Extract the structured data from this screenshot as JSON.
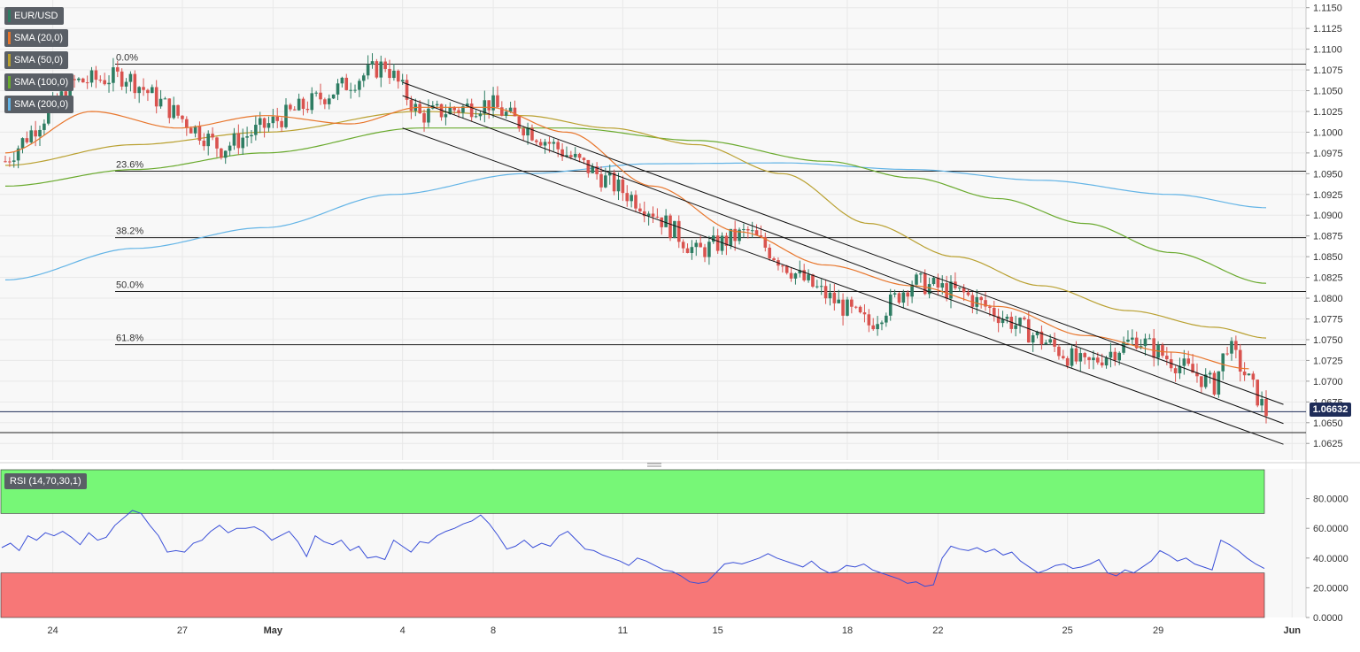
{
  "legend": {
    "symbol": "EUR/USD",
    "sma20": "SMA (20,0)",
    "sma50": "SMA (50,0)",
    "sma100": "SMA (100,0)",
    "sma200": "SMA (200,0)"
  },
  "rsi_label": "RSI (14,70,30,1)",
  "last_price": "1.06632",
  "colors": {
    "up": "#2e7d63",
    "down": "#d9534f",
    "sma20": "#e8762c",
    "sma50": "#b9a030",
    "sma100": "#6aaa2e",
    "sma200": "#63b4e6",
    "rsi": "#3a4fd8",
    "overbought": "#77f777",
    "oversold": "#f77777",
    "channel": "#111111",
    "current_price_line": "#1f2d59"
  },
  "chart_data": [
    {
      "type": "candlestick",
      "symbol": "EUR/USD",
      "ylim": [
        1.0605,
        1.1155
      ],
      "y_ticks": [
        "1.1150",
        "1.1125",
        "1.1100",
        "1.1075",
        "1.1050",
        "1.1025",
        "1.1000",
        "1.0975",
        "1.0950",
        "1.0925",
        "1.0900",
        "1.0875",
        "1.0850",
        "1.0825",
        "1.0800",
        "1.0775",
        "1.0750",
        "1.0725",
        "1.0700",
        "1.0675",
        "1.0650",
        "1.0625"
      ],
      "x_ticks": [
        "24",
        "27",
        "May",
        "4",
        "8",
        "11",
        "15",
        "18",
        "22",
        "25",
        "29",
        "Jun"
      ],
      "fibonacci": [
        {
          "label": "0.0%",
          "price": 1.1082
        },
        {
          "label": "23.6%",
          "price": 1.0953
        },
        {
          "label": "38.2%",
          "price": 1.0873
        },
        {
          "label": "50.0%",
          "price": 1.0808
        },
        {
          "label": "61.8%",
          "price": 1.0744
        }
      ],
      "support_level": 1.0638,
      "current_price": 1.06632,
      "channel": {
        "upper": [
          [
            1.106,
            1.0672
          ]
        ],
        "middle": [
          [
            1.1044,
            1.0649
          ]
        ],
        "lower": [
          [
            1.1005,
            1.0624
          ]
        ]
      },
      "key_points": [
        {
          "t": 0,
          "price": 1.0965
        },
        {
          "t": 16,
          "price": 1.106
        },
        {
          "t": 28,
          "price": 1.1068
        },
        {
          "t": 50,
          "price": 1.098
        },
        {
          "t": 88,
          "price": 1.1082
        },
        {
          "t": 96,
          "price": 1.102
        },
        {
          "t": 112,
          "price": 1.1035
        },
        {
          "t": 150,
          "price": 1.0905
        },
        {
          "t": 160,
          "price": 1.0855
        },
        {
          "t": 172,
          "price": 1.088
        },
        {
          "t": 184,
          "price": 1.0825
        },
        {
          "t": 200,
          "price": 1.0768
        },
        {
          "t": 210,
          "price": 1.082
        },
        {
          "t": 222,
          "price": 1.0805
        },
        {
          "t": 240,
          "price": 1.075
        },
        {
          "t": 250,
          "price": 1.0718
        },
        {
          "t": 262,
          "price": 1.0752
        },
        {
          "t": 270,
          "price": 1.0725
        },
        {
          "t": 280,
          "price": 1.0695
        },
        {
          "t": 283,
          "price": 1.0745
        },
        {
          "t": 288,
          "price": 1.07
        },
        {
          "t": 292,
          "price": 1.0662
        }
      ],
      "sma": {
        "sma20": [
          [
            0,
            1.0975
          ],
          [
            20,
            1.1025
          ],
          [
            40,
            1.1005
          ],
          [
            60,
            1.102
          ],
          [
            80,
            1.101
          ],
          [
            96,
            1.103
          ],
          [
            112,
            1.103
          ],
          [
            130,
            1.1
          ],
          [
            150,
            1.0935
          ],
          [
            170,
            1.088
          ],
          [
            190,
            1.084
          ],
          [
            210,
            1.0815
          ],
          [
            230,
            1.079
          ],
          [
            250,
            1.0755
          ],
          [
            270,
            1.0735
          ],
          [
            288,
            1.0715
          ]
        ],
        "sma50": [
          [
            0,
            1.096
          ],
          [
            30,
            1.0985
          ],
          [
            60,
            1.1
          ],
          [
            96,
            1.1025
          ],
          [
            120,
            1.102
          ],
          [
            140,
            1.1005
          ],
          [
            160,
            1.0985
          ],
          [
            180,
            1.095
          ],
          [
            200,
            1.089
          ],
          [
            220,
            1.085
          ],
          [
            240,
            1.0815
          ],
          [
            260,
            1.0785
          ],
          [
            280,
            1.0765
          ],
          [
            292,
            1.0752
          ]
        ],
        "sma100": [
          [
            0,
            1.0935
          ],
          [
            30,
            1.0955
          ],
          [
            60,
            1.0975
          ],
          [
            96,
            1.1005
          ],
          [
            130,
            1.1005
          ],
          [
            160,
            1.099
          ],
          [
            190,
            1.0965
          ],
          [
            210,
            1.0945
          ],
          [
            230,
            1.092
          ],
          [
            250,
            1.089
          ],
          [
            270,
            1.0855
          ],
          [
            292,
            1.0818
          ]
        ],
        "sma200": [
          [
            0,
            1.0822
          ],
          [
            30,
            1.086
          ],
          [
            60,
            1.0885
          ],
          [
            90,
            1.0925
          ],
          [
            120,
            1.095
          ],
          [
            150,
            1.0962
          ],
          [
            180,
            1.0963
          ],
          [
            210,
            1.0955
          ],
          [
            240,
            1.0942
          ],
          [
            270,
            1.0925
          ],
          [
            292,
            1.0909
          ]
        ]
      }
    },
    {
      "type": "line",
      "name": "RSI (14,70,30,1)",
      "ylim": [
        0,
        100
      ],
      "y_ticks": [
        "80.0000",
        "60.0000",
        "40.0000",
        "20.0000",
        "0.0000"
      ],
      "overbought": 70,
      "oversold": 30,
      "values": [
        47,
        50,
        45,
        55,
        52,
        57,
        55,
        58,
        54,
        49,
        57,
        52,
        54,
        62,
        67,
        72,
        70,
        62,
        55,
        44,
        45,
        44,
        50,
        52,
        58,
        62,
        57,
        60,
        60,
        61,
        58,
        52,
        55,
        58,
        51,
        41,
        55,
        51,
        49,
        52,
        45,
        48,
        40,
        41,
        39,
        52,
        48,
        44,
        51,
        50,
        55,
        58,
        60,
        63,
        65,
        69,
        63,
        55,
        46,
        48,
        52,
        47,
        50,
        48,
        55,
        58,
        52,
        46,
        45,
        42,
        40,
        38,
        35,
        40,
        38,
        35,
        32,
        31,
        28,
        24,
        23,
        24,
        30,
        36,
        37,
        36,
        38,
        40,
        43,
        40,
        38,
        36,
        34,
        38,
        33,
        30,
        31,
        35,
        34,
        36,
        32,
        30,
        28,
        26,
        23,
        24,
        21,
        22,
        40,
        48,
        46,
        45,
        47,
        44,
        46,
        42,
        44,
        38,
        34,
        30,
        32,
        35,
        36,
        33,
        34,
        36,
        39,
        30,
        28,
        32,
        30,
        34,
        38,
        45,
        42,
        38,
        40,
        36,
        34,
        32,
        52,
        49,
        45,
        40,
        36,
        33
      ]
    }
  ]
}
